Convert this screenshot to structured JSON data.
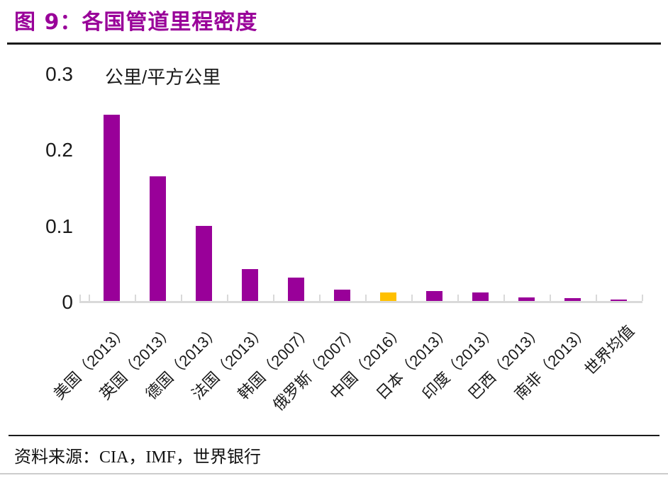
{
  "header": {
    "title": "图 9：各国管道里程密度"
  },
  "chart_data": {
    "type": "bar",
    "title": "各国管道里程密度",
    "xlabel": "",
    "ylabel": "公里/平方公里",
    "ylim": [
      0,
      0.3
    ],
    "yticks": [
      0,
      0.1,
      0.2,
      0.3
    ],
    "grid": false,
    "legend": "none",
    "categories": [
      "美国（2013）",
      "英国（2013）",
      "德国（2013）",
      "法国（2013）",
      "韩国（2007）",
      "俄罗斯（2007）",
      "中国（2016）",
      "日本（2013）",
      "印度（2013）",
      "巴西（2013）",
      "南非（2013）",
      "世界均值"
    ],
    "values": [
      0.245,
      0.164,
      0.099,
      0.042,
      0.031,
      0.015,
      0.011,
      0.013,
      0.011,
      0.005,
      0.004,
      0.002
    ],
    "bar_color": "#990099",
    "highlight_index": 6,
    "highlight_category": "中国（2016）",
    "highlight_color": "#FFC000",
    "axis_color": "#d9d9d9"
  },
  "footer": {
    "source": "资料来源：CIA，IMF，世界银行"
  },
  "colors": {
    "title": "#990099",
    "bar": "#990099",
    "highlight": "#FFC000",
    "axis": "#d9d9d9",
    "rule_dark": "#1a1a1a",
    "rule_light": "#cccccc"
  }
}
